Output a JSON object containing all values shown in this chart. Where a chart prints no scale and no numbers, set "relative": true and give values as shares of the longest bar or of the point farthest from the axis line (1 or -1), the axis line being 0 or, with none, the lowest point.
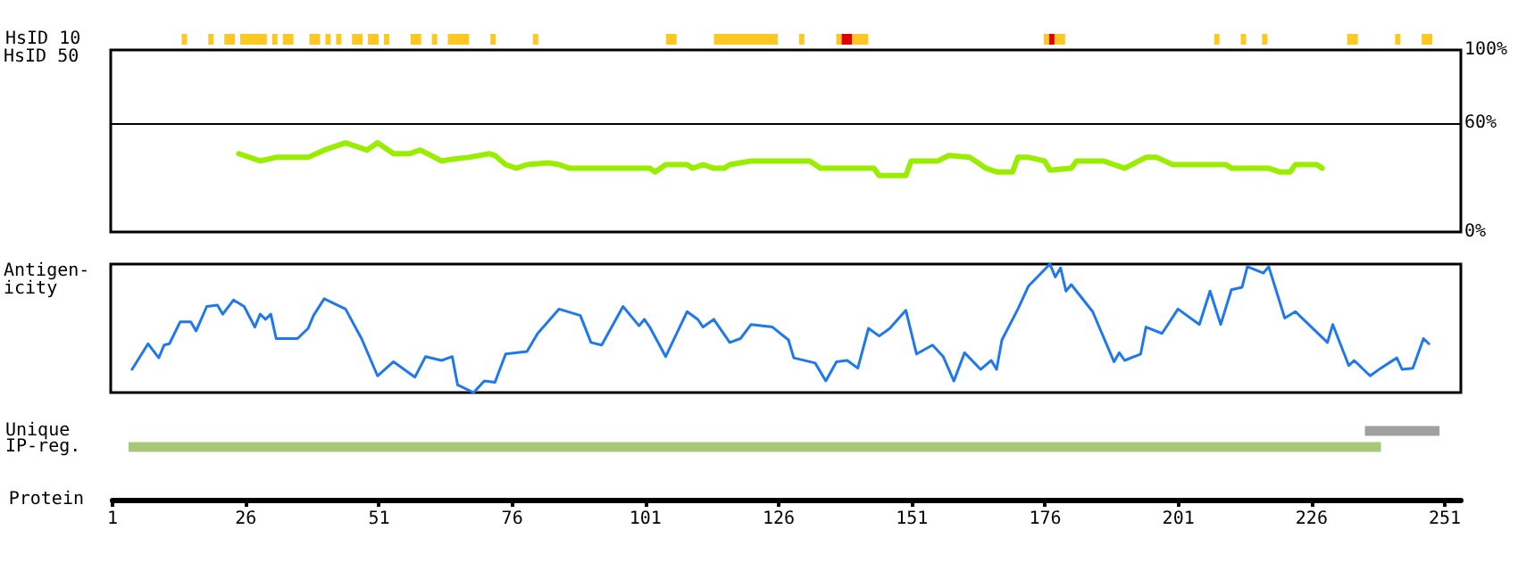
{
  "chart_data": [
    {
      "type": "bar",
      "orientation": "horizontal",
      "categories": [
        "HsID 10"
      ],
      "xlim": [
        1,
        251
      ],
      "xticks": [
        1,
        26,
        51,
        76,
        101,
        126,
        151,
        176,
        201,
        226,
        251
      ],
      "tick_labels": "y",
      "series": [
        {
          "color": "#ffc820",
          "base": [
            14
          ],
          "values": [
            1
          ]
        },
        {
          "color": "#ffc820",
          "base": [
            19
          ],
          "values": [
            1
          ]
        },
        {
          "color": "#ffc820",
          "base": [
            22
          ],
          "values": [
            2
          ]
        },
        {
          "color": "#ffc820",
          "base": [
            25
          ],
          "values": [
            5
          ]
        },
        {
          "color": "#ffc820",
          "base": [
            31
          ],
          "values": [
            1
          ]
        },
        {
          "color": "#ffc820",
          "base": [
            33
          ],
          "values": [
            2
          ]
        },
        {
          "color": "#ffc820",
          "base": [
            38
          ],
          "values": [
            2
          ]
        },
        {
          "color": "#ffc820",
          "base": [
            41
          ],
          "values": [
            1
          ]
        },
        {
          "color": "#ffc820",
          "base": [
            43
          ],
          "values": [
            1
          ]
        },
        {
          "color": "#ffc820",
          "base": [
            46
          ],
          "values": [
            2
          ]
        },
        {
          "color": "#ffc820",
          "base": [
            49
          ],
          "values": [
            2
          ]
        },
        {
          "color": "#ffc820",
          "base": [
            52
          ],
          "values": [
            1
          ]
        },
        {
          "color": "#ffc820",
          "base": [
            57
          ],
          "values": [
            2
          ]
        },
        {
          "color": "#ffc820",
          "base": [
            61
          ],
          "values": [
            1
          ]
        },
        {
          "color": "#ffc820",
          "base": [
            64
          ],
          "values": [
            4
          ]
        },
        {
          "color": "#ffc820",
          "base": [
            72
          ],
          "values": [
            1
          ]
        },
        {
          "color": "#ffc820",
          "base": [
            80
          ],
          "values": [
            1
          ]
        },
        {
          "color": "#ffc820",
          "base": [
            105
          ],
          "values": [
            2
          ]
        },
        {
          "color": "#ffc820",
          "base": [
            114
          ],
          "values": [
            12
          ]
        },
        {
          "color": "#ffc820",
          "base": [
            130
          ],
          "values": [
            1
          ]
        },
        {
          "color": "#ffc820",
          "base": [
            137
          ],
          "values": [
            1
          ]
        },
        {
          "color": "#e00000",
          "base": [
            138
          ],
          "values": [
            2
          ]
        },
        {
          "color": "#ffc820",
          "base": [
            140
          ],
          "values": [
            3
          ]
        },
        {
          "color": "#ffc820",
          "base": [
            176
          ],
          "values": [
            1
          ]
        },
        {
          "color": "#e00000",
          "base": [
            177
          ],
          "values": [
            1
          ]
        },
        {
          "color": "#ffc820",
          "base": [
            178
          ],
          "values": [
            2
          ]
        },
        {
          "color": "#ffc820",
          "base": [
            208
          ],
          "values": [
            1
          ]
        },
        {
          "color": "#ffc820",
          "base": [
            213
          ],
          "values": [
            1
          ]
        },
        {
          "color": "#ffc820",
          "base": [
            217
          ],
          "values": [
            1
          ]
        },
        {
          "color": "#ffc820",
          "base": [
            233
          ],
          "values": [
            2
          ]
        },
        {
          "color": "#ffc820",
          "base": [
            242
          ],
          "values": [
            1
          ]
        },
        {
          "color": "#ffc820",
          "base": [
            247
          ],
          "values": [
            2
          ]
        }
      ]
    },
    {
      "type": "line",
      "ylabel": "HsID 50",
      "x": [
        25,
        29,
        32,
        38,
        41,
        45,
        47,
        49,
        51,
        54,
        57,
        59,
        63,
        65,
        68,
        72,
        73,
        75,
        77,
        79,
        83,
        85,
        87,
        102,
        103,
        105,
        109,
        110,
        112,
        114,
        116,
        117,
        121,
        123,
        132,
        134,
        144,
        145,
        150,
        151,
        156,
        158,
        162,
        165,
        167,
        170,
        171,
        173,
        176,
        177,
        181,
        182,
        187,
        189,
        191,
        195,
        197,
        200,
        210,
        211,
        218,
        220,
        222,
        223,
        227,
        228
      ],
      "series": [
        {
          "color": "#99ee00",
          "values": [
            43,
            39,
            41,
            41,
            45,
            49,
            47,
            45,
            49,
            43,
            43,
            45,
            39,
            40,
            41,
            43,
            42,
            37,
            35,
            37,
            38,
            37,
            35,
            35,
            33,
            37,
            37,
            35,
            37,
            35,
            35,
            37,
            39,
            39,
            39,
            35,
            35,
            31,
            31,
            39,
            39,
            42,
            41,
            35,
            33,
            33,
            41,
            41,
            39,
            34,
            35,
            39,
            39,
            37,
            35,
            41,
            41,
            37,
            37,
            35,
            35,
            33,
            33,
            37,
            37,
            35
          ]
        }
      ],
      "xlim": [
        1,
        254
      ],
      "ylim": [
        0,
        100
      ],
      "yticks": [
        {
          "value": 0,
          "label": "0%"
        },
        {
          "value": 60,
          "label": "60%"
        },
        {
          "value": 100,
          "label": "100%"
        }
      ],
      "tick_labels": "y",
      "ref_lines": [
        {
          "axis": "y",
          "value": 60,
          "label": null
        }
      ]
    },
    {
      "type": "line",
      "relative": true,
      "ylabel": "Antigen-\nicity",
      "xlim": [
        1,
        254
      ],
      "tick_labels": false,
      "x": [
        5,
        8,
        10,
        11,
        12,
        14,
        16,
        17,
        19,
        21,
        22,
        24,
        26,
        28,
        29,
        30,
        31,
        32,
        36,
        38,
        39,
        41,
        45,
        48,
        51,
        54,
        58,
        60,
        63,
        65,
        66,
        69,
        71,
        73,
        75,
        79,
        81,
        85,
        89,
        91,
        93,
        97,
        100,
        101,
        102,
        105,
        109,
        111,
        112,
        114,
        117,
        119,
        121,
        125,
        128,
        129,
        133,
        135,
        137,
        139,
        141,
        143,
        145,
        147,
        150,
        152,
        155,
        157,
        159,
        161,
        164,
        166,
        167,
        168,
        171,
        173,
        177,
        178,
        179,
        180,
        181,
        185,
        189,
        190,
        191,
        194,
        195,
        198,
        201,
        205,
        207,
        209,
        211,
        213,
        214,
        217,
        218,
        221,
        223,
        225,
        229,
        230,
        233,
        234,
        237,
        239,
        242,
        243,
        245,
        247,
        248
      ],
      "series": [
        {
          "color": "#1e78f0",
          "values": [
            0.18,
            0.38,
            0.27,
            0.37,
            0.38,
            0.55,
            0.55,
            0.48,
            0.67,
            0.68,
            0.61,
            0.72,
            0.67,
            0.51,
            0.61,
            0.57,
            0.61,
            0.42,
            0.42,
            0.5,
            0.6,
            0.73,
            0.65,
            0.42,
            0.13,
            0.24,
            0.12,
            0.28,
            0.25,
            0.28,
            0.06,
            0,
            0.09,
            0.08,
            0.3,
            0.32,
            0.46,
            0.65,
            0.6,
            0.39,
            0.37,
            0.67,
            0.52,
            0.57,
            0.51,
            0.28,
            0.63,
            0.57,
            0.51,
            0.57,
            0.39,
            0.42,
            0.53,
            0.51,
            0.41,
            0.27,
            0.23,
            0.09,
            0.24,
            0.25,
            0.19,
            0.5,
            0.44,
            0.5,
            0.64,
            0.3,
            0.37,
            0.28,
            0.09,
            0.31,
            0.18,
            0.25,
            0.18,
            0.41,
            0.65,
            0.83,
            1,
            0.9,
            0.97,
            0.79,
            0.84,
            0.63,
            0.24,
            0.31,
            0.25,
            0.3,
            0.51,
            0.46,
            0.65,
            0.53,
            0.79,
            0.53,
            0.8,
            0.82,
            0.98,
            0.93,
            0.98,
            0.58,
            0.63,
            0.55,
            0.39,
            0.53,
            0.21,
            0.25,
            0.13,
            0.19,
            0.27,
            0.18,
            0.19,
            0.42,
            0.38
          ]
        }
      ]
    },
    {
      "type": "bar",
      "orientation": "horizontal",
      "categories": [
        "Unique",
        "IP-reg."
      ],
      "xlabel": "Protein",
      "base": [
        236,
        4
      ],
      "values": [
        14,
        235
      ],
      "colors": [
        "#a0a0a0",
        "#a8c878"
      ],
      "xlim": [
        1,
        254
      ],
      "xticks": [
        1,
        26,
        51,
        76,
        101,
        126,
        151,
        176,
        201,
        226,
        251
      ]
    }
  ]
}
